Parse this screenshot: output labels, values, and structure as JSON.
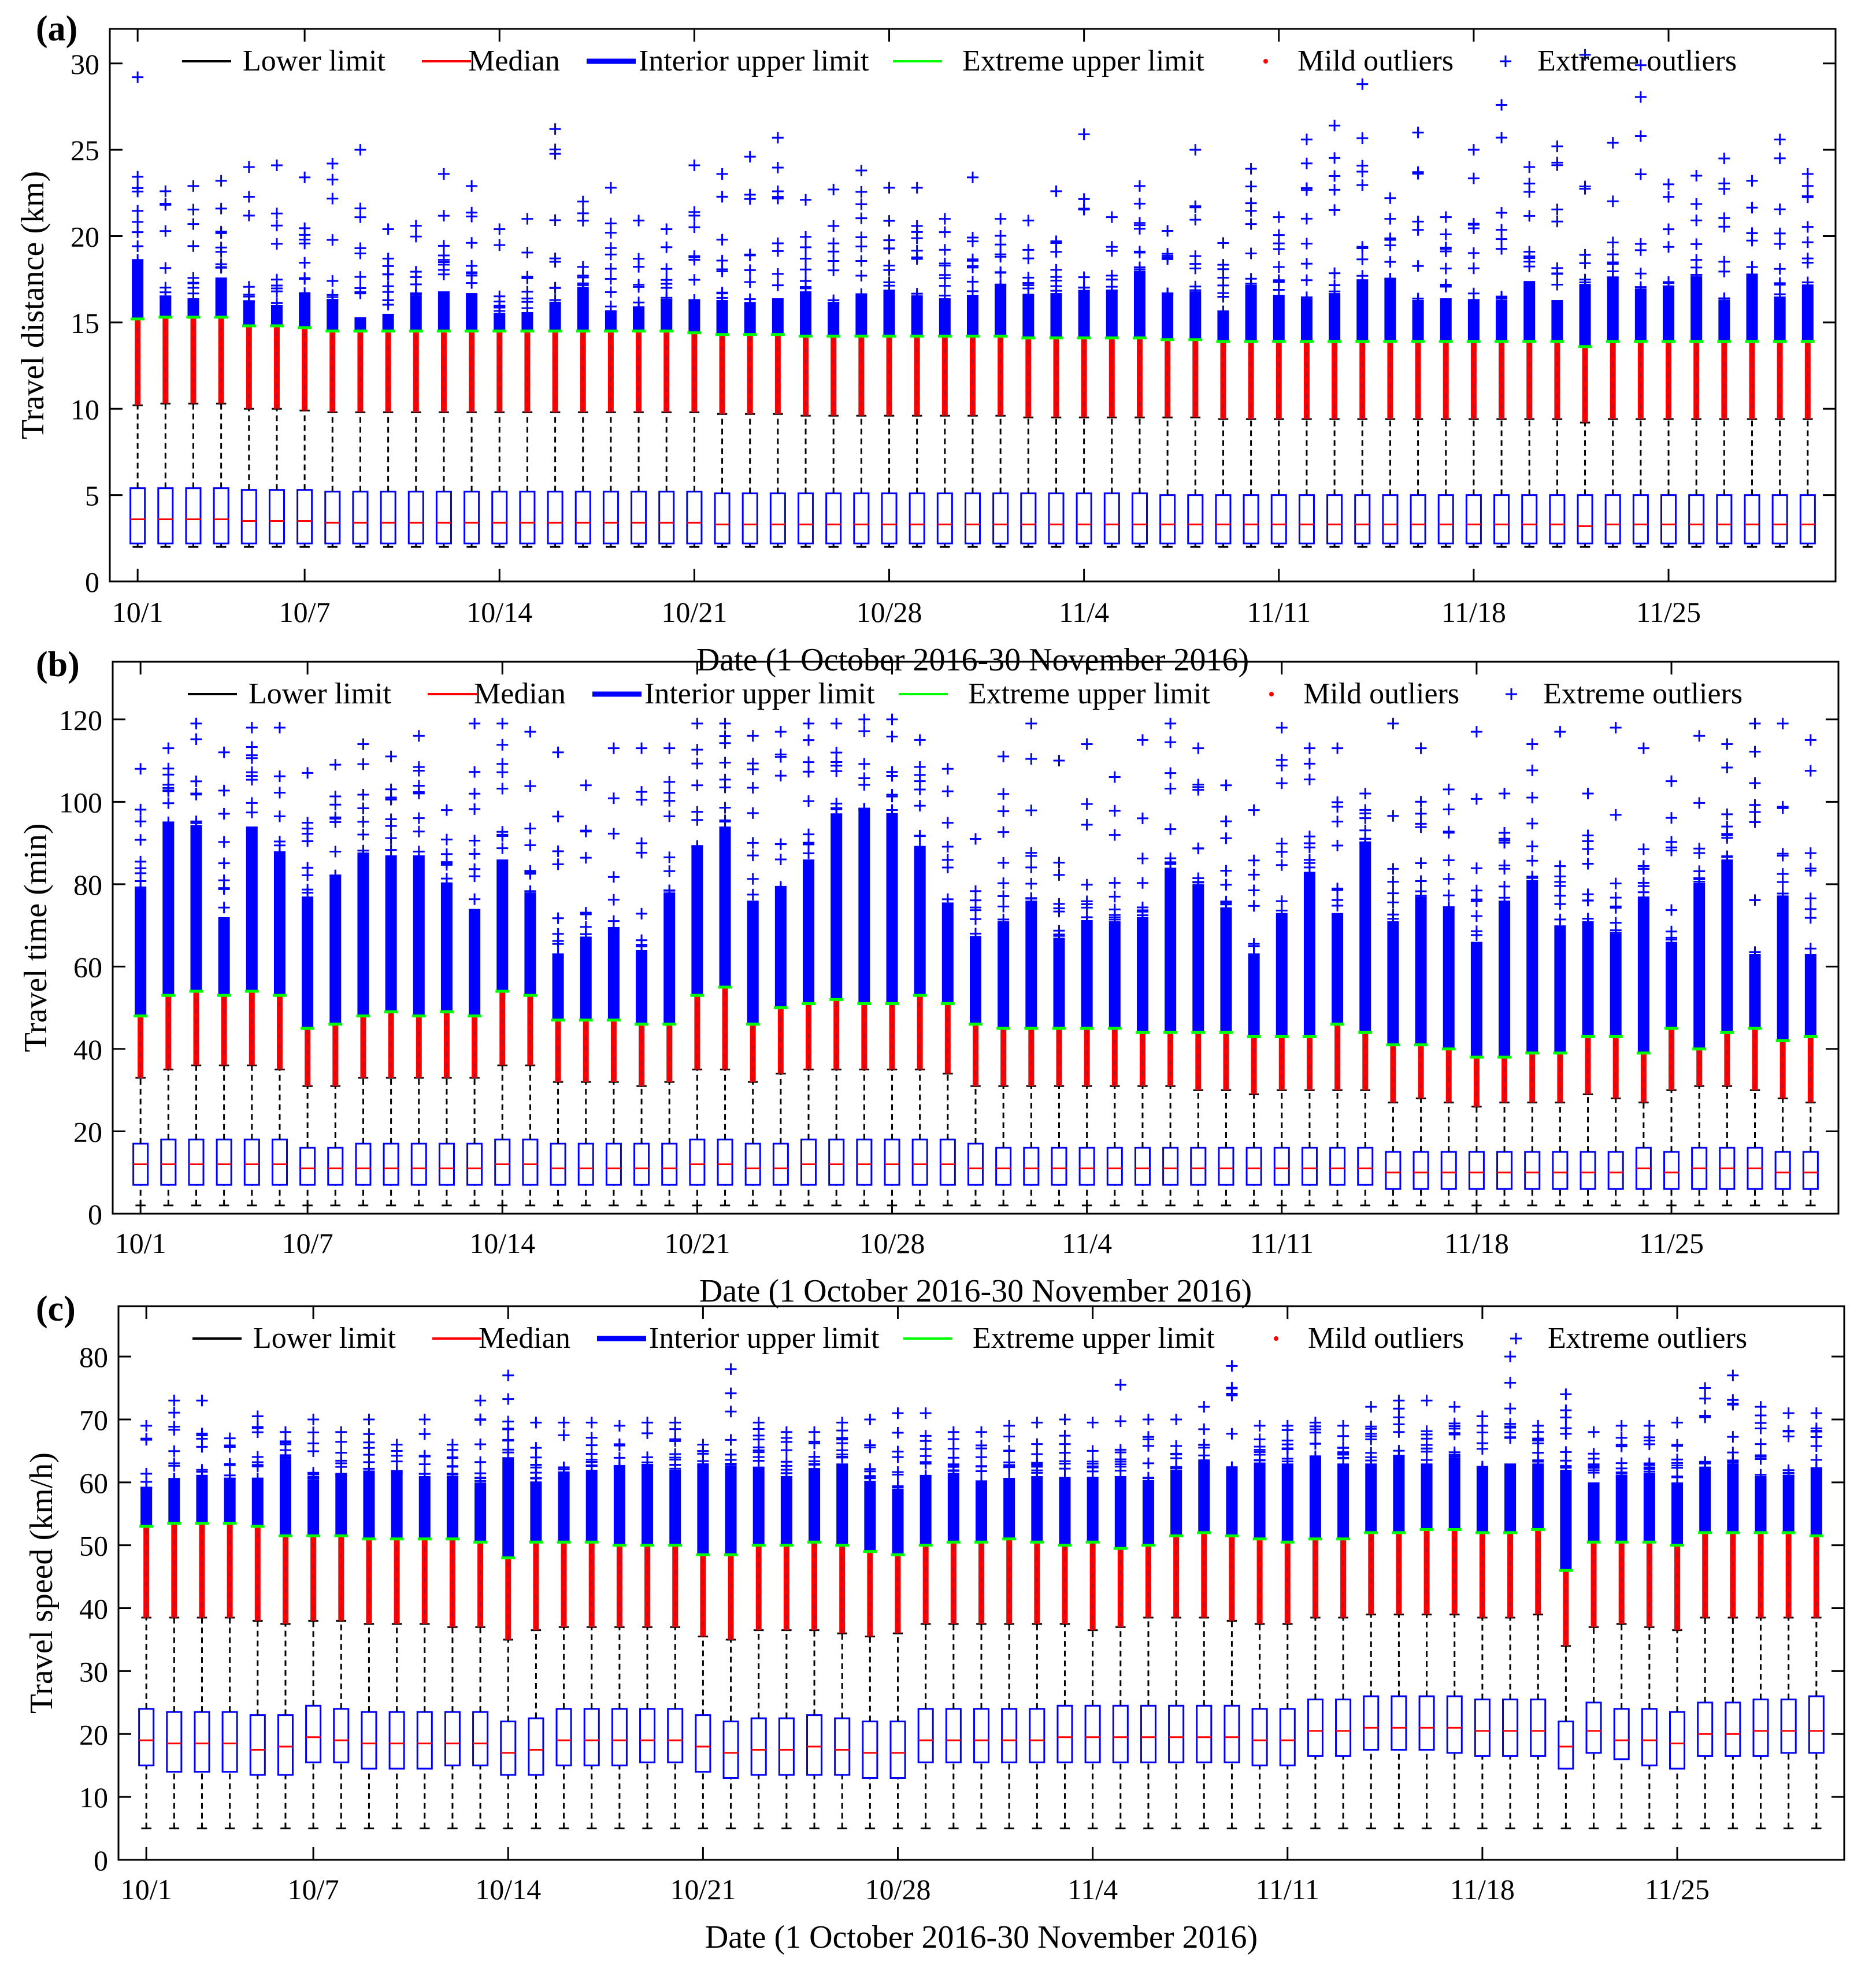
{
  "figure": {
    "legend_labels": [
      "Lower limit",
      "Median",
      "Interior upper limit",
      "Extreme upper limit",
      "Mild outliers",
      "Extreme outliers"
    ],
    "legend_markers": [
      "+",
      "+",
      "+",
      "+",
      "·",
      "+"
    ],
    "xlabel": "Date (1 October 2016-30 November 2016)",
    "colors": {
      "lower": "#000000",
      "median": "#ff0000",
      "interior": "#0000ff",
      "extreme": "#00ff00",
      "mild_outlier": "#ff0000",
      "extreme_outlier": "#0000ff",
      "axis": "#000000"
    }
  },
  "chart_data": [
    {
      "type": "box",
      "panel_label": "(a)",
      "ylabel": "Travel distance (km)",
      "xlabel": "Date (1 October 2016-30 November 2016)",
      "ylim": [
        0,
        32
      ],
      "yticks": [
        0,
        5,
        10,
        15,
        20,
        25,
        30
      ],
      "xlim": [
        0,
        62
      ],
      "xtick_positions": [
        1,
        7,
        14,
        21,
        28,
        35,
        42,
        49,
        56
      ],
      "xtick_labels": [
        "10/1",
        "10/7",
        "10/14",
        "10/21",
        "10/28",
        "11/4",
        "11/11",
        "11/18",
        "11/25"
      ],
      "n_days": 61,
      "whisker_low": [
        2
      ],
      "q1": [
        2.2
      ],
      "median": [
        3.6,
        3.6,
        3.6,
        3.6,
        3.5,
        3.5,
        3.5,
        3.4,
        3.4,
        3.4,
        3.4,
        3.4,
        3.4,
        3.4,
        3.4,
        3.4,
        3.4,
        3.4,
        3.4,
        3.4,
        3.4,
        3.3,
        3.3,
        3.3,
        3.3,
        3.3,
        3.3,
        3.3,
        3.3,
        3.3,
        3.3,
        3.3,
        3.3,
        3.3,
        3.3,
        3.3,
        3.3,
        3.3,
        3.3,
        3.3,
        3.3,
        3.3,
        3.3,
        3.3,
        3.3,
        3.3,
        3.3,
        3.3,
        3.3,
        3.3,
        3.3,
        3.3,
        3.2,
        3.3,
        3.3,
        3.3,
        3.3,
        3.3,
        3.3,
        3.3,
        3.3
      ],
      "q3": [
        5.4,
        5.4,
        5.4,
        5.4,
        5.3,
        5.3,
        5.3,
        5.2,
        5.2,
        5.2,
        5.2,
        5.2,
        5.2,
        5.2,
        5.2,
        5.2,
        5.2,
        5.2,
        5.2,
        5.2,
        5.2,
        5.1,
        5.1,
        5.1,
        5.1,
        5.1,
        5.1,
        5.1,
        5.1,
        5.1,
        5.1,
        5.1,
        5.1,
        5.1,
        5.1,
        5.1,
        5.1,
        5.0,
        5.0,
        5.0,
        5.0,
        5.0,
        5.0,
        5.0,
        5.0,
        5.0,
        5.0,
        5.0,
        5.0,
        5.0,
        5.0,
        5.0,
        5.0,
        5.0,
        5.0,
        5.0,
        5.0,
        5.0,
        5.0,
        5.0,
        5.0
      ],
      "lower_limit": [
        10.2,
        10.3,
        10.3,
        10.3,
        10.0,
        10.0,
        9.9,
        9.8,
        9.8,
        9.8,
        9.8,
        9.8,
        9.8,
        9.8,
        9.8,
        9.8,
        9.8,
        9.8,
        9.8,
        9.8,
        9.8,
        9.7,
        9.7,
        9.7,
        9.6,
        9.6,
        9.6,
        9.6,
        9.6,
        9.6,
        9.6,
        9.6,
        9.5,
        9.5,
        9.5,
        9.5,
        9.5,
        9.5,
        9.5,
        9.4,
        9.4,
        9.4,
        9.4,
        9.4,
        9.4,
        9.4,
        9.4,
        9.4,
        9.4,
        9.4,
        9.4,
        9.4,
        9.2,
        9.4,
        9.4,
        9.4,
        9.4,
        9.4,
        9.4,
        9.4,
        9.4
      ],
      "extreme_limit": [
        15.2,
        15.3,
        15.3,
        15.3,
        14.8,
        14.8,
        14.7,
        14.5,
        14.5,
        14.5,
        14.5,
        14.5,
        14.5,
        14.5,
        14.5,
        14.5,
        14.5,
        14.5,
        14.5,
        14.5,
        14.4,
        14.3,
        14.3,
        14.3,
        14.2,
        14.2,
        14.2,
        14.2,
        14.2,
        14.2,
        14.2,
        14.2,
        14.1,
        14.1,
        14.1,
        14.1,
        14.1,
        14.0,
        14.0,
        13.9,
        13.9,
        13.9,
        13.9,
        13.9,
        13.9,
        13.9,
        13.9,
        13.9,
        13.9,
        13.9,
        13.9,
        13.9,
        13.6,
        13.9,
        13.9,
        13.9,
        13.9,
        13.9,
        13.9,
        13.9,
        13.9
      ],
      "dense_top": [
        18.6,
        16.5,
        16.4,
        17.6,
        16.2,
        16.0,
        16.7,
        16.3,
        15.3,
        15.5,
        16.5,
        16.8,
        16.7,
        15.5,
        15.6,
        16.2,
        17.0,
        15.7,
        15.8,
        16.3,
        16.3,
        16.3,
        16.1,
        16.4,
        16.8,
        16.1,
        16.6,
        16.9,
        16.5,
        16.4,
        16.6,
        17.1,
        16.6,
        16.7,
        16.8,
        16.8,
        18.0,
        16.6,
        16.8,
        15.6,
        17.1,
        16.6,
        16.4,
        16.6,
        17.5,
        17.5,
        16.2,
        16.4,
        16.3,
        16.3,
        17.4,
        16.3,
        17.1,
        17.6,
        16.9,
        17.0,
        17.6,
        16.3,
        17.7,
        16.5,
        17.2
      ],
      "outlier_max": [
        29.2,
        22.6,
        22.9,
        23.2,
        24.0,
        24.1,
        23.4,
        24.2,
        25.0,
        20.4,
        20.6,
        23.6,
        22.9,
        20.4,
        21.0,
        26.2,
        22.0,
        22.8,
        20.9,
        20.4,
        24.1,
        23.6,
        24.6,
        25.7,
        22.1,
        22.7,
        23.8,
        22.8,
        22.8,
        21.0,
        23.4,
        21.0,
        20.9,
        22.6,
        25.9,
        21.1,
        22.9,
        20.3,
        25.0,
        19.6,
        23.9,
        21.1,
        25.6,
        26.4,
        28.8,
        22.2,
        26.0,
        21.1,
        25.0,
        27.6,
        24.0,
        25.2,
        30.5,
        25.4,
        29.9,
        23.0,
        23.5,
        24.5,
        23.2,
        25.6,
        23.6
      ]
    },
    {
      "type": "box",
      "panel_label": "(b)",
      "ylabel": "Travel time (min)",
      "xlabel": "Date (1 October 2016-30 November 2016)",
      "ylim": [
        0,
        134
      ],
      "yticks": [
        0,
        20,
        40,
        60,
        80,
        100,
        120
      ],
      "xlim": [
        0,
        62
      ],
      "xtick_positions": [
        1,
        7,
        14,
        21,
        28,
        35,
        42,
        49,
        56
      ],
      "xtick_labels": [
        "10/1",
        "10/7",
        "10/14",
        "10/21",
        "10/28",
        "11/4",
        "11/11",
        "11/18",
        "11/25"
      ],
      "n_days": 61,
      "whisker_low": [
        2
      ],
      "q1": [
        7,
        7,
        7,
        7,
        7,
        7,
        7,
        7,
        7,
        7,
        7,
        7,
        7,
        7,
        7,
        7,
        7,
        7,
        7,
        7,
        7,
        7,
        7,
        7,
        7,
        7,
        7,
        7,
        7,
        7,
        7,
        7,
        7,
        7,
        7,
        7,
        7,
        7,
        7,
        7,
        7,
        7,
        7,
        7,
        7,
        6,
        6,
        6,
        6,
        6,
        6,
        6,
        6,
        6,
        6,
        6,
        6,
        6,
        6,
        6,
        6
      ],
      "median": [
        12,
        12,
        12,
        12,
        12,
        12,
        11,
        11,
        11,
        11,
        11,
        11,
        11,
        12,
        12,
        11,
        11,
        11,
        11,
        11,
        12,
        12,
        11,
        11,
        12,
        12,
        12,
        12,
        12,
        12,
        11,
        11,
        11,
        11,
        11,
        11,
        11,
        11,
        11,
        11,
        11,
        11,
        11,
        11,
        11,
        10,
        10,
        10,
        10,
        10,
        10,
        10,
        10,
        10,
        11,
        10,
        11,
        11,
        11,
        10,
        10
      ],
      "q3": [
        17,
        18,
        18,
        18,
        18,
        18,
        16,
        16,
        17,
        17,
        17,
        17,
        17,
        18,
        18,
        17,
        17,
        17,
        17,
        17,
        18,
        18,
        17,
        17,
        18,
        18,
        18,
        18,
        18,
        18,
        17,
        16,
        16,
        16,
        16,
        16,
        16,
        16,
        16,
        16,
        16,
        16,
        16,
        16,
        16,
        15,
        15,
        15,
        15,
        15,
        15,
        15,
        15,
        15,
        16,
        15,
        16,
        16,
        16,
        15,
        15
      ],
      "lower_limit": [
        33,
        35,
        36,
        36,
        36,
        35,
        31,
        31,
        33,
        33,
        33,
        33,
        33,
        36,
        36,
        32,
        32,
        32,
        31,
        32,
        35,
        35,
        32,
        34,
        35,
        35,
        35,
        35,
        35,
        34,
        31,
        31,
        31,
        31,
        31,
        31,
        31,
        31,
        30,
        30,
        29,
        30,
        30,
        30,
        30,
        27,
        28,
        27,
        26,
        27,
        27,
        27,
        29,
        28,
        27,
        30,
        31,
        31,
        30,
        28,
        27
      ],
      "extreme_limit": [
        48,
        53,
        54,
        53,
        54,
        53,
        45,
        46,
        48,
        49,
        48,
        49,
        48,
        54,
        53,
        47,
        47,
        47,
        46,
        46,
        53,
        55,
        46,
        50,
        51,
        52,
        51,
        51,
        53,
        51,
        46,
        45,
        45,
        45,
        45,
        45,
        44,
        44,
        44,
        44,
        43,
        43,
        43,
        46,
        44,
        41,
        41,
        40,
        38,
        38,
        39,
        39,
        43,
        43,
        39,
        45,
        40,
        44,
        45,
        42,
        43
      ],
      "dense_top": [
        79,
        95,
        94,
        72,
        94,
        87,
        77,
        82,
        87,
        87,
        87,
        80,
        74,
        86,
        78,
        63,
        67,
        69,
        64,
        78,
        89,
        94,
        76,
        79,
        86,
        97,
        98,
        97,
        89,
        75,
        67,
        71,
        76,
        67,
        71,
        71,
        72,
        84,
        80,
        74,
        63,
        73,
        83,
        73,
        90,
        71,
        77,
        74,
        66,
        76,
        81,
        70,
        71,
        68,
        77,
        66,
        80,
        86,
        63,
        77,
        63
      ],
      "outlier_max": [
        108,
        113,
        119,
        112,
        118,
        118,
        107,
        109,
        114,
        111,
        116,
        98,
        119,
        119,
        117,
        112,
        104,
        113,
        113,
        113,
        119,
        119,
        116,
        117,
        119,
        119,
        120,
        120,
        115,
        108,
        91,
        111,
        119,
        110,
        114,
        106,
        115,
        119,
        113,
        104,
        98,
        118,
        113,
        113,
        102,
        119,
        113,
        103,
        117,
        102,
        114,
        117,
        102,
        118,
        113,
        105,
        116,
        114,
        119,
        119,
        115
      ]
    },
    {
      "type": "box",
      "panel_label": "(c)",
      "ylabel": "Travel speed (km/h)",
      "xlabel": "Date (1 October 2016-30 November 2016)",
      "ylim": [
        0,
        88
      ],
      "yticks": [
        0,
        10,
        20,
        30,
        40,
        50,
        60,
        70,
        80
      ],
      "xlim": [
        0,
        62
      ],
      "xtick_positions": [
        1,
        7,
        14,
        21,
        28,
        35,
        42,
        49,
        56
      ],
      "xtick_labels": [
        "10/1",
        "10/7",
        "10/14",
        "10/21",
        "10/28",
        "11/4",
        "11/11",
        "11/18",
        "11/25"
      ],
      "n_days": 61,
      "whisker_low": [
        5
      ],
      "q1": [
        15,
        14,
        14,
        14,
        13.5,
        13.5,
        15.5,
        15.5,
        14.5,
        14.5,
        14.5,
        15,
        15,
        13.5,
        13.5,
        15,
        15,
        15,
        15.5,
        15.5,
        14,
        13,
        13.5,
        13.5,
        13.5,
        13.5,
        13,
        13,
        15.5,
        15.5,
        15.5,
        15.5,
        15.5,
        15.5,
        15.5,
        15.5,
        15.5,
        15.5,
        15.5,
        15.5,
        15,
        15,
        16.5,
        16.5,
        17.5,
        17.5,
        17.5,
        17,
        16.5,
        16.5,
        16.5,
        14.5,
        17,
        16,
        15,
        14.5,
        16.5,
        16.5,
        16.5,
        17,
        17
      ],
      "median": [
        19,
        18.5,
        18.5,
        18.5,
        17.5,
        18,
        19.5,
        19,
        18.5,
        18.5,
        18.5,
        18.5,
        18.5,
        17,
        17.5,
        19,
        19,
        19,
        19,
        19,
        18,
        17,
        17.5,
        17.5,
        18,
        17.5,
        17,
        17,
        19,
        19,
        19,
        19,
        19,
        19.5,
        19.5,
        19.5,
        19.5,
        19.5,
        19.5,
        19.5,
        19,
        19,
        20.5,
        20.5,
        21,
        21,
        21,
        21,
        20.5,
        20.5,
        20.5,
        18,
        20.5,
        19,
        19,
        18.5,
        20,
        20,
        20.5,
        20.5,
        20.5
      ],
      "q3": [
        24,
        23.5,
        23.5,
        23.5,
        23,
        23,
        24.5,
        24,
        23.5,
        23.5,
        23.5,
        23.5,
        23.5,
        22,
        22.5,
        24,
        24,
        24,
        24,
        24,
        23,
        22,
        22.5,
        22.5,
        23,
        22.5,
        22,
        22,
        24,
        24,
        24,
        24,
        24,
        24.5,
        24.5,
        24.5,
        24.5,
        24.5,
        24.5,
        24.5,
        24,
        24,
        25.5,
        25.5,
        26,
        26,
        26,
        26,
        25.5,
        25.5,
        25.5,
        22,
        25,
        24,
        24,
        23.5,
        25,
        25,
        25.5,
        25.5,
        26
      ],
      "lower_limit": [
        38.5,
        38.5,
        38.5,
        38.5,
        38,
        37.5,
        38,
        38,
        37.5,
        37.5,
        37.5,
        37,
        37,
        35,
        36.5,
        37,
        37,
        37,
        37,
        37,
        35.5,
        35,
        36.5,
        36.5,
        36.5,
        36,
        35.5,
        36,
        37.5,
        37.5,
        37.5,
        37.5,
        37.5,
        37.5,
        36.5,
        37,
        38.5,
        38.5,
        38.5,
        38,
        37.5,
        37.5,
        38.5,
        38.5,
        39,
        39,
        39,
        39,
        38.5,
        38.5,
        39,
        34,
        37,
        37.5,
        37,
        36.5,
        38.5,
        38.5,
        38.5,
        38.5,
        38.5
      ],
      "extreme_limit": [
        53,
        53.5,
        53.5,
        53.5,
        53,
        51.5,
        51.5,
        51.5,
        51,
        51,
        51,
        51,
        50.5,
        48,
        50.5,
        50.5,
        50.5,
        50,
        50,
        50,
        48.5,
        48.5,
        50,
        50,
        50.5,
        50,
        49,
        48.5,
        50,
        50.5,
        50.5,
        51,
        50.5,
        50,
        50.5,
        49.5,
        50,
        51.5,
        52,
        51.5,
        51,
        50.5,
        51,
        51,
        52,
        52,
        52.5,
        52.5,
        52,
        52,
        52.5,
        46,
        50.5,
        50.5,
        50.5,
        50,
        52,
        52,
        52,
        52,
        51.5
      ],
      "dense_top": [
        59,
        60.5,
        61,
        60.5,
        60.5,
        63.5,
        60.5,
        61,
        61.5,
        61.5,
        61,
        61,
        60,
        64,
        60,
        61,
        62,
        62,
        62.5,
        62,
        62.5,
        62.5,
        62.5,
        61,
        62,
        63,
        60,
        59,
        61,
        61.5,
        60,
        60.5,
        61,
        60.5,
        60.5,
        61,
        60,
        62,
        63,
        62,
        63,
        63,
        64,
        63,
        63,
        64,
        63,
        64,
        62,
        63,
        63,
        62,
        60,
        61,
        61.5,
        60,
        62.5,
        63,
        61,
        61,
        62
      ],
      "outlier_max": [
        69,
        73,
        73,
        67,
        70.5,
        68,
        70,
        68,
        70,
        66,
        70,
        66,
        73,
        77,
        69.5,
        69.5,
        69.5,
        69,
        69.5,
        69.5,
        66,
        78,
        69.5,
        68,
        68,
        69.5,
        70,
        71,
        71,
        68,
        68,
        69,
        69.5,
        70,
        69.5,
        75.5,
        70,
        70,
        72,
        78.5,
        69,
        69,
        69.5,
        69,
        72,
        73,
        73,
        72,
        70.5,
        80,
        69,
        74,
        68,
        69,
        69,
        69.5,
        75,
        77,
        72,
        71,
        71
      ]
    }
  ]
}
